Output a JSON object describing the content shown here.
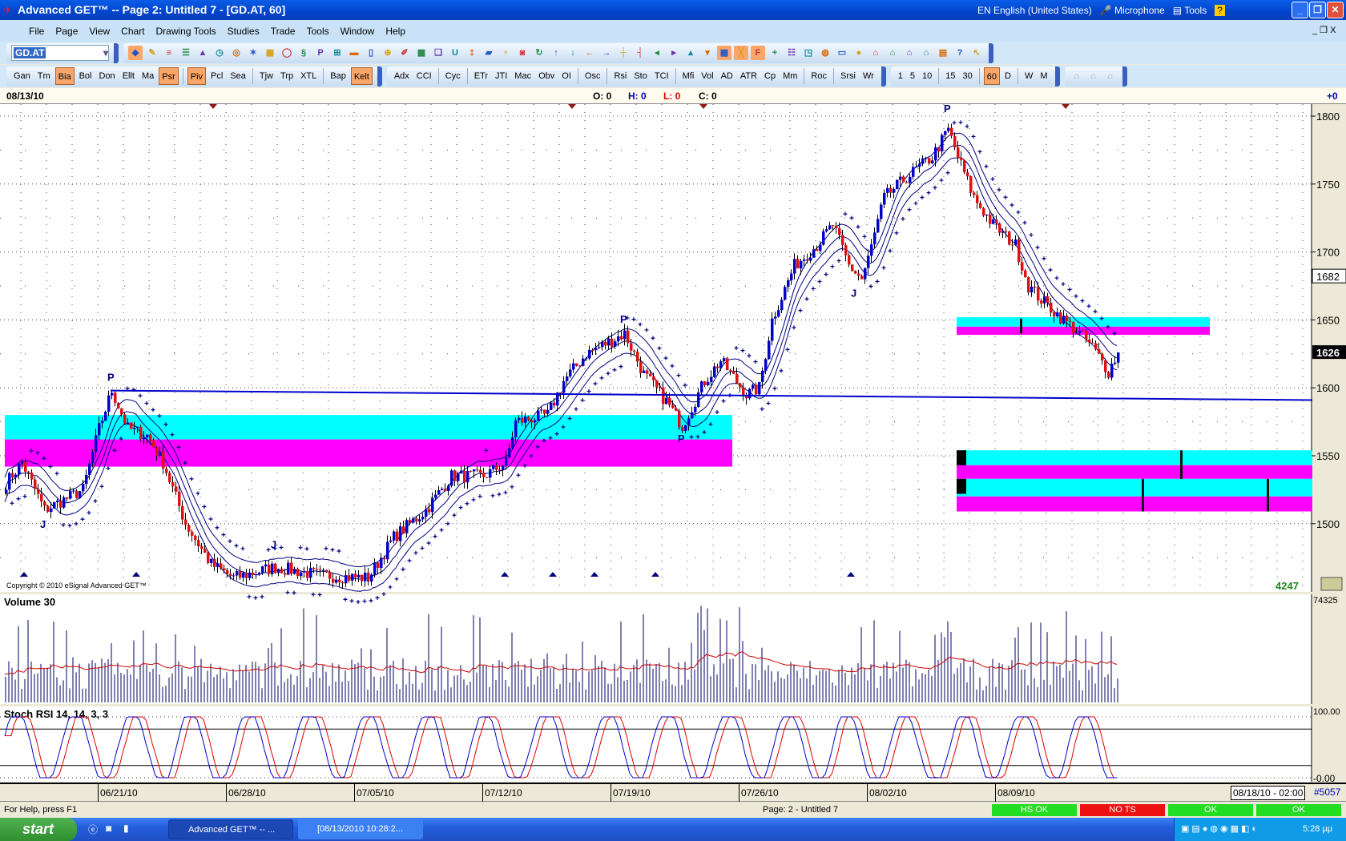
{
  "window": {
    "title": "Advanced GET™  --  Page 2: Untitled 7 - [GD.AT, 60]",
    "language": "EN English (United States)",
    "microphone": "Microphone",
    "tools": "Tools"
  },
  "menu": [
    "File",
    "Page",
    "View",
    "Chart",
    "Drawing Tools",
    "Studies",
    "Trade",
    "Tools",
    "Window",
    "Help"
  ],
  "toolbar": {
    "symbol": "GD.AT",
    "icons_row1": [
      "cursor-icon",
      "pencil-icon",
      "lines-icon",
      "bars-icon",
      "levels-icon",
      "clock-icon",
      "target-icon",
      "fan-icon",
      "grid-icon",
      "elips-icon",
      "wave-icon",
      "pti-icon",
      "table-icon",
      "mob-icon",
      "page-icon",
      "zoom-icon",
      "marker-icon",
      "layout-icon",
      "copy-icon",
      "magnet-icon",
      "compress-icon",
      "folder-icon",
      "filter-icon",
      "record-icon",
      "refresh-icon",
      "arrow-up-icon",
      "arrow-down-icon",
      "arrow-left-icon",
      "arrow-right-icon",
      "step-up-icon",
      "step-down-icon",
      "expand-h-icon",
      "compress-h-icon",
      "expand-v-icon",
      "compress-v-icon",
      "grid-toggle-icon",
      "lines-toggle-icon",
      "fib-icon",
      "crosshair-icon",
      "properties-icon",
      "new-window-icon",
      "camera-icon",
      "tray-icon",
      "ball-icon",
      "home-icon",
      "home-save-icon",
      "home-back-icon",
      "home-next-icon",
      "print-icon",
      "tip-icon",
      "help-cursor-icon"
    ],
    "study_buttons": [
      [
        "Gan",
        "Tm",
        "Bia",
        "Bol",
        "Don",
        "Ellt",
        "Ma",
        "Psr"
      ],
      [
        "Piv",
        "Pcl",
        "Sea"
      ],
      [
        "Tjw",
        "Trp",
        "XTL"
      ],
      [
        "Bap",
        "Kelt"
      ]
    ],
    "study_buttons2": [
      [
        "Adx",
        "CCI"
      ],
      [
        "Cyc"
      ],
      [
        "ETr",
        "JTI",
        "Mac",
        "Obv",
        "OI"
      ],
      [
        "Osc"
      ],
      [
        "Rsi",
        "Sto",
        "TCI"
      ],
      [
        "Mfi",
        "Vol",
        "AD",
        "ATR",
        "Cp",
        "Mm"
      ],
      [
        "Roc"
      ],
      [
        "Srsi",
        "Wr"
      ]
    ],
    "intervals": [
      [
        "1",
        "5",
        "10"
      ],
      [
        "15",
        "30"
      ],
      [
        "60",
        "D"
      ],
      [
        "W",
        "M"
      ]
    ],
    "active": [
      "Bia",
      "Psr",
      "Piv",
      "Kelt",
      "60"
    ]
  },
  "infobar": {
    "date": "08/13/10",
    "o_label": "O: 0",
    "h_label": "H: 0",
    "l_label": "L: 0",
    "c_label": "C: 0",
    "change": "+0"
  },
  "chart_data": {
    "type": "candlestick",
    "symbol": "GD.AT",
    "interval": "60",
    "price_axis": {
      "ticks": [
        1800,
        1750,
        1700,
        1650,
        1600,
        1550,
        1500
      ],
      "range": [
        1450,
        1810
      ]
    },
    "last_price": 1626,
    "marker_price": 1682,
    "bar_count_label": "4247",
    "copyright": "Copyright © 2010 eSignal Advanced GET™",
    "price_path_bars": [
      0,
      5,
      12,
      24,
      29,
      33,
      38,
      44,
      49,
      56,
      64,
      71,
      84,
      98,
      113,
      121,
      131,
      139,
      149,
      156,
      159,
      169,
      174,
      181,
      193,
      199,
      206,
      211,
      218,
      223,
      231,
      235,
      239,
      246,
      253,
      258,
      263,
      267,
      269,
      274,
      281,
      289,
      294,
      297,
      302,
      308,
      315,
      319,
      323,
      330,
      335,
      339,
      344,
      347
    ],
    "price_path": [
      1530,
      1545,
      1510,
      1525,
      1570,
      1598,
      1570,
      1565,
      1545,
      1500,
      1470,
      1460,
      1468,
      1462,
      1460,
      1490,
      1510,
      1535,
      1535,
      1545,
      1575,
      1580,
      1605,
      1625,
      1640,
      1610,
      1590,
      1572,
      1605,
      1620,
      1595,
      1600,
      1650,
      1690,
      1705,
      1720,
      1690,
      1680,
      1695,
      1740,
      1755,
      1770,
      1790,
      1770,
      1740,
      1720,
      1705,
      1675,
      1665,
      1650,
      1640,
      1630,
      1612,
      1626
    ],
    "labels": [
      {
        "text": "P",
        "bar": 33,
        "price": 1605
      },
      {
        "text": "P",
        "bar": 193,
        "price": 1648
      },
      {
        "text": "P",
        "bar": 211,
        "price": 1560
      },
      {
        "text": "P",
        "bar": 294,
        "price": 1803
      },
      {
        "text": "J",
        "bar": 12,
        "price": 1497
      },
      {
        "text": "J",
        "bar": 84,
        "price": 1482
      },
      {
        "text": "J",
        "bar": 265,
        "price": 1667
      }
    ],
    "trendline": {
      "from": {
        "bar": 33,
        "price": 1598
      },
      "to": {
        "bar": 408,
        "price": 1591
      },
      "color": "#0000cc"
    },
    "zones": [
      {
        "from_bar": 0,
        "to_bar": 227,
        "cyan": [
          1580,
          1562
        ],
        "magenta": [
          1562,
          1542
        ]
      },
      {
        "from_bar": 297,
        "to_bar": 376,
        "cyan": [
          1652,
          1645
        ],
        "magenta": [
          1645,
          1639
        ]
      },
      {
        "from_bar": 297,
        "to_bar": 408,
        "cyan": [
          1554,
          1543
        ],
        "magenta": [
          1543,
          1533
        ]
      },
      {
        "from_bar": 297,
        "to_bar": 408,
        "cyan": [
          1533,
          1520
        ],
        "magenta": [
          1520,
          1509
        ]
      }
    ],
    "zone_markers": [
      {
        "bar": 317,
        "low": 1640,
        "high": 1651
      },
      {
        "bar": 367,
        "low": 1533,
        "high": 1554
      },
      {
        "bar": 355,
        "low": 1509,
        "high": 1533
      },
      {
        "bar": 394,
        "low": 1509,
        "high": 1533
      }
    ],
    "top_markers_bars": [
      65,
      177,
      218,
      331
    ],
    "bottom_markers_bars": [
      6,
      41,
      156,
      171,
      184,
      203,
      264
    ],
    "colors": {
      "up": "#0000cc",
      "down": "#dd1111",
      "cyan": "#00ffff",
      "magenta": "#ff00ff",
      "bands": "#000080"
    },
    "volume": {
      "title": "Volume 30",
      "axis_top": "74325",
      "average_color": "#cc0000"
    },
    "stoch_rsi": {
      "title": "Stoch RSI 14, 14, 3, 3",
      "axis_top": "100.00",
      "axis_bottom": "-0.00",
      "levels": [
        80,
        20
      ]
    },
    "dates": [
      "06/21/10",
      "06/28/10",
      "07/05/10",
      "07/12/10",
      "07/19/10",
      "07/26/10",
      "08/02/10",
      "08/09/10"
    ],
    "date_bars": [
      29,
      69,
      109,
      149,
      189,
      229,
      269,
      309
    ],
    "end_date": "08/18/10 - 02:00",
    "bar_number": "#5057"
  },
  "statusbar": {
    "help": "For Help, press F1",
    "page": "Page: 2 - Untitled 7",
    "boxes": [
      {
        "label": "HS OK",
        "color": "#22dd22"
      },
      {
        "label": "NO TS",
        "color": "#ee1111"
      },
      {
        "label": "OK",
        "color": "#22dd22"
      },
      {
        "label": "OK",
        "color": "#22dd22"
      }
    ]
  },
  "taskbar": {
    "start": "start",
    "tasks": [
      "Advanced GET™ -- ...",
      "[08/13/2010 10:28:2..."
    ],
    "clock": "5:28 μμ"
  }
}
